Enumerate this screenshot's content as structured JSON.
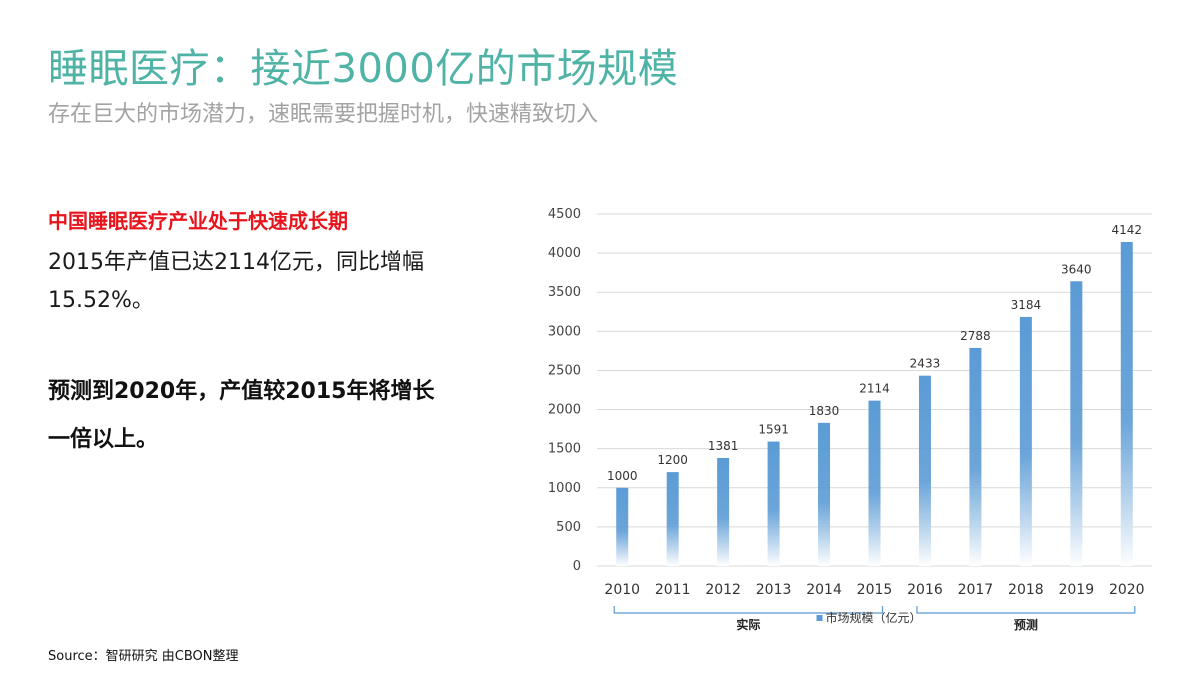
{
  "page": {
    "title": "睡眠医疗：接近3000亿的市场规模",
    "subtitle": "存在巨大的市场潜力，速眠需要把握时机，快速精致切入",
    "highlight": "中国睡眠医疗产业处于快速成长期",
    "body": "2015年产值已达2114亿元，同比增幅15.52%。",
    "forecast": "预测到2020年，产值较2015年将增长一倍以上。",
    "source": "Source：智研研究 由CBON整理"
  },
  "colors": {
    "title": "#4fb3a5",
    "highlight": "#e8141c",
    "bar_top": "#5b9bd5",
    "bar_bottom": "#ffffff",
    "grid": "#d9d9d9",
    "bracket": "#5b9bd5"
  },
  "chart_data": {
    "type": "bar",
    "categories": [
      "2010",
      "2011",
      "2012",
      "2013",
      "2014",
      "2015",
      "2016",
      "2017",
      "2018",
      "2019",
      "2020"
    ],
    "series": [
      {
        "name": "市场规模（亿元）",
        "values": [
          1000,
          1200,
          1381,
          1591,
          1830,
          2114,
          2433,
          2788,
          3184,
          3640,
          4142
        ]
      }
    ],
    "ylim": [
      0,
      4500
    ],
    "yticks": [
      0,
      500,
      1000,
      1500,
      2000,
      2500,
      3000,
      3500,
      4000,
      4500
    ],
    "grid": true,
    "legend": "bottom",
    "groups": [
      {
        "label": "实际",
        "from": "2010",
        "to": "2015"
      },
      {
        "label": "预测",
        "from": "2016",
        "to": "2020"
      }
    ]
  }
}
